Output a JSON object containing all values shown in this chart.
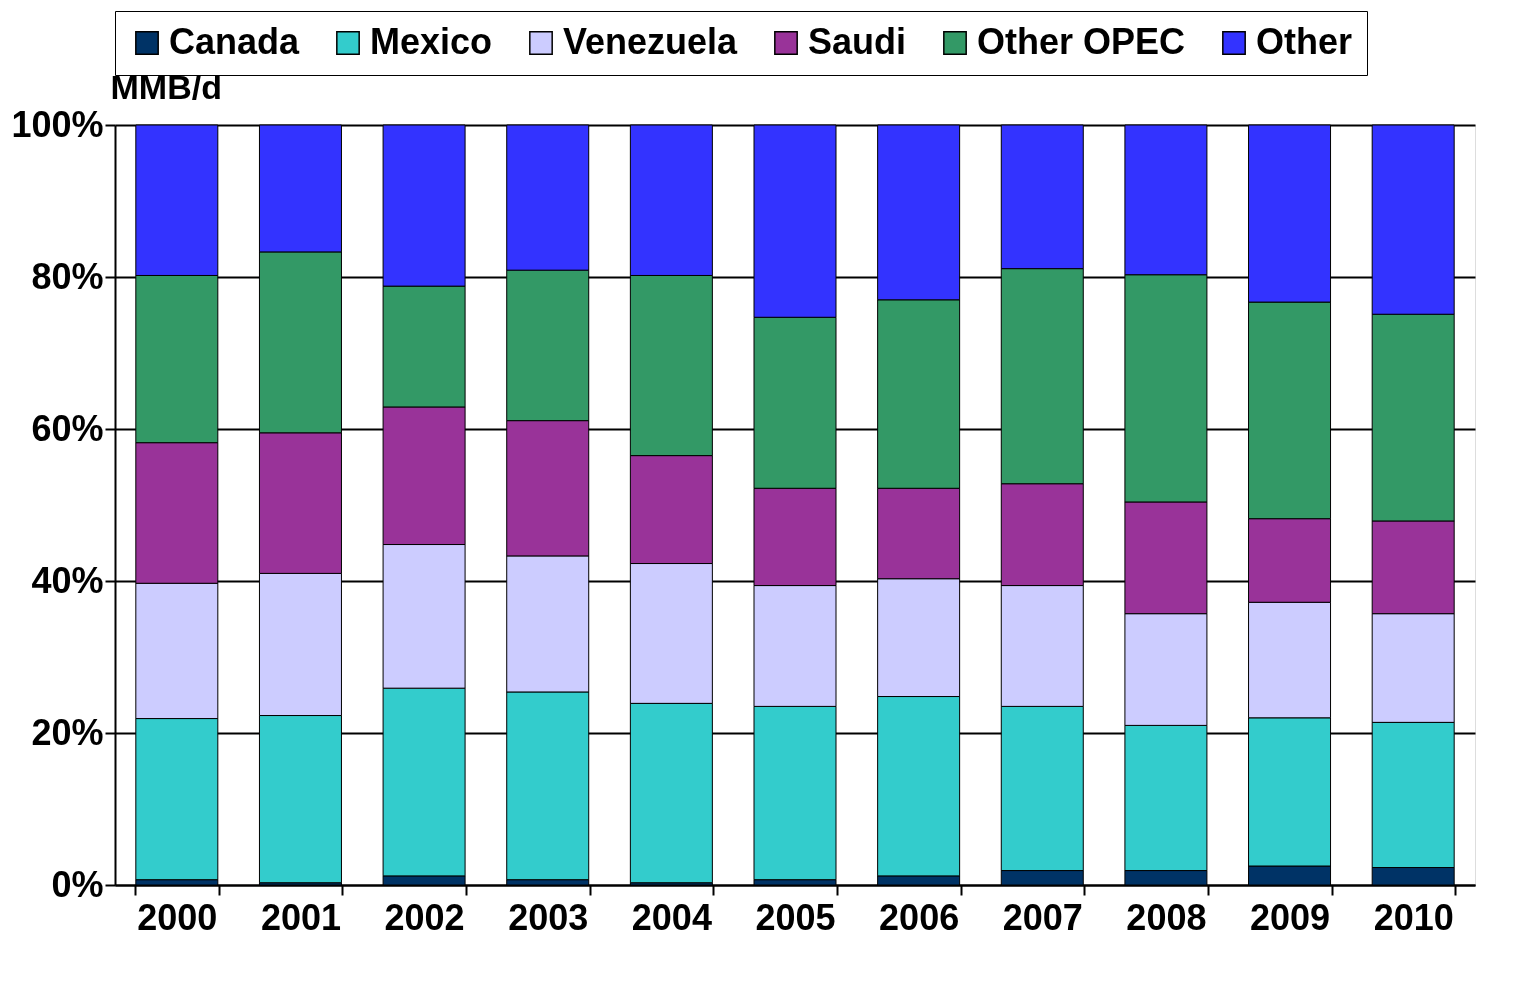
{
  "chart_data": {
    "type": "bar",
    "stacked": true,
    "ylabel": "MMB/d",
    "categories": [
      "2000",
      "2001",
      "2002",
      "2003",
      "2004",
      "2005",
      "2006",
      "2007",
      "2008",
      "2009",
      "2010"
    ],
    "series": [
      {
        "name": "Canada",
        "color": "#003366",
        "values": [
          0.7,
          0.3,
          1.2,
          0.7,
          0.3,
          0.7,
          1.2,
          1.9,
          1.9,
          2.5,
          2.3
        ]
      },
      {
        "name": "Mexico",
        "color": "#33cccc",
        "values": [
          21.2,
          22.0,
          24.7,
          24.7,
          23.6,
          22.8,
          23.6,
          21.6,
          19.1,
          19.5,
          19.1
        ]
      },
      {
        "name": "Venezuela",
        "color": "#ccccff",
        "values": [
          17.8,
          18.7,
          18.9,
          17.9,
          18.4,
          15.9,
          15.5,
          15.9,
          14.7,
          15.2,
          14.3
        ]
      },
      {
        "name": "Saudi",
        "color": "#993399",
        "values": [
          18.5,
          18.5,
          18.1,
          17.8,
          14.2,
          12.8,
          11.9,
          13.4,
          14.7,
          11.0,
          12.2
        ]
      },
      {
        "name": "Other OPEC",
        "color": "#339966",
        "values": [
          22.0,
          23.8,
          15.9,
          19.8,
          23.7,
          22.5,
          24.8,
          28.3,
          29.9,
          28.5,
          27.2
        ]
      },
      {
        "name": "Other",
        "color": "#3333ff",
        "values": [
          19.8,
          16.7,
          21.2,
          19.1,
          19.8,
          25.3,
          23.0,
          18.9,
          19.7,
          23.3,
          24.9
        ]
      }
    ],
    "ylim": [
      0,
      100
    ],
    "yticks": [
      {
        "value": 0,
        "label": "0%"
      },
      {
        "value": 20,
        "label": "20%"
      },
      {
        "value": 40,
        "label": "40%"
      },
      {
        "value": 60,
        "label": "60%"
      },
      {
        "value": 80,
        "label": "80%"
      },
      {
        "value": 100,
        "label": "100%"
      }
    ],
    "grid": "y",
    "legend": "top right"
  }
}
